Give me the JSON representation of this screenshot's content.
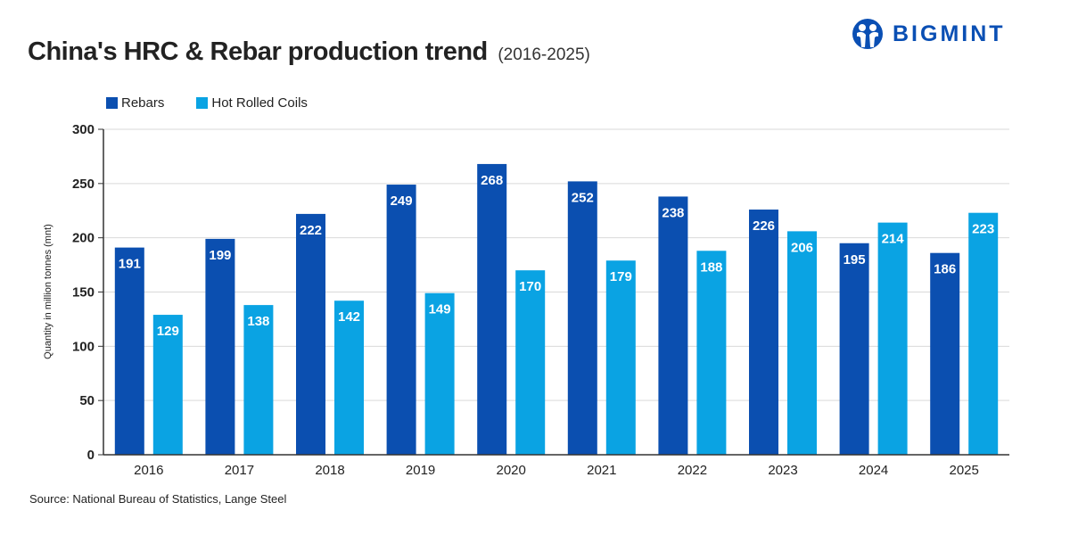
{
  "header": {
    "title": "China's HRC & Rebar production trend",
    "subtitle": "(2016-2025)",
    "logo_text": "BIGMINT",
    "logo_color": "#0a4fb4"
  },
  "footer": {
    "source": "Source: National Bureau of Statistics, Lange Steel"
  },
  "chart_data": {
    "type": "bar",
    "title": "China's HRC & Rebar production trend (2016-2025)",
    "xlabel": "",
    "ylabel": "Quantity in million tonnes (mnt)",
    "ylim": [
      0,
      300
    ],
    "yticks": [
      0,
      50,
      100,
      150,
      200,
      250,
      300
    ],
    "grid": true,
    "legend_position": "top-left",
    "categories": [
      "2016",
      "2017",
      "2018",
      "2019",
      "2020",
      "2021",
      "2022",
      "2023",
      "2024",
      "2025"
    ],
    "series": [
      {
        "name": "Rebars",
        "color": "#0b4fb0",
        "values": [
          191,
          199,
          222,
          249,
          268,
          252,
          238,
          226,
          195,
          186
        ]
      },
      {
        "name": "Hot Rolled Coils",
        "color": "#0aa3e3",
        "values": [
          129,
          138,
          142,
          149,
          170,
          179,
          188,
          206,
          214,
          223
        ]
      }
    ]
  }
}
